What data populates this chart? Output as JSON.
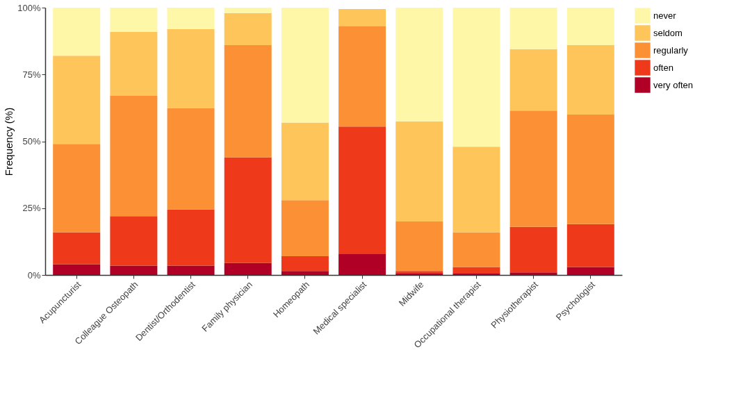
{
  "chart_data": {
    "type": "bar",
    "stacked": true,
    "ylabel": "Frequency (%)",
    "legend": "right",
    "grid": false,
    "categories": [
      "Acupuncturist",
      "Colleague Osteopath",
      "Dentist/Orthodentist",
      "Family physician",
      "Homeopath",
      "Medical specialist",
      "Midwife",
      "Occupational therapist",
      "Physiotherapist",
      "Psychologist"
    ],
    "ylim": [
      0,
      100
    ],
    "yticks": [
      {
        "value": 0,
        "label": "0%"
      },
      {
        "value": 25,
        "label": "25%"
      },
      {
        "value": 50,
        "label": "50%"
      },
      {
        "value": 75,
        "label": "75%"
      },
      {
        "value": 100,
        "label": "100%"
      }
    ],
    "series": [
      {
        "name": "very often",
        "color": "#b10026",
        "values": [
          4,
          3.5,
          3.5,
          4.5,
          1.5,
          8,
          0.5,
          0.5,
          1,
          3
        ]
      },
      {
        "name": "often",
        "color": "#ee3a1a",
        "values": [
          12,
          18.5,
          21,
          39.5,
          5.5,
          47.5,
          1,
          2.5,
          17,
          16
        ]
      },
      {
        "name": "regularly",
        "color": "#fb9035",
        "values": [
          33,
          45,
          38,
          42,
          21,
          37.5,
          18.5,
          13,
          43.5,
          41
        ]
      },
      {
        "name": "seldom",
        "color": "#fec55a",
        "values": [
          33,
          24,
          29.5,
          12,
          29,
          6.5,
          37.5,
          32,
          23,
          26
        ]
      },
      {
        "name": "never",
        "color": "#fff7a8",
        "values": [
          18,
          9,
          8,
          2,
          43,
          0,
          42.5,
          52,
          15.5,
          14
        ]
      }
    ]
  }
}
